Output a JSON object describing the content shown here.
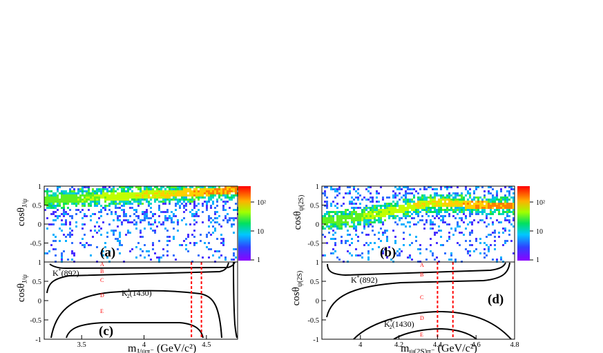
{
  "chart_data": [
    {
      "id": "a",
      "type": "heatmap",
      "label": "(a)",
      "ylabel": {
        "main": "cosθ",
        "sub": "J/ψ"
      },
      "xlim": [
        3.2,
        4.75
      ],
      "ylim": [
        -1,
        1
      ],
      "yticks": [
        "-0.5",
        "0",
        "0.5",
        "1"
      ],
      "colorbar": {
        "scale": "log",
        "ticks": [
          "1",
          "10",
          "10²"
        ]
      }
    },
    {
      "id": "b",
      "type": "heatmap",
      "label": "(b)",
      "ylabel": {
        "main": "cosθ",
        "sub": "ψ(2S)"
      },
      "xlim": [
        3.8,
        4.8
      ],
      "ylim": [
        -1,
        1
      ],
      "yticks": [
        "-0.5",
        "0",
        "0.5",
        "1"
      ],
      "colorbar": {
        "scale": "log",
        "ticks": [
          "1",
          "10",
          "10²"
        ]
      }
    },
    {
      "id": "c",
      "type": "line",
      "label": "(c)",
      "ylabel": {
        "main": "cosθ",
        "sub": "J/ψ"
      },
      "xlabel": {
        "main": "m",
        "sub": "J/ψπ⁻",
        "unit": "(GeV/c²)"
      },
      "xlim": [
        3.2,
        4.75
      ],
      "ylim": [
        -1,
        1
      ],
      "xticks": [
        "3.5",
        "4",
        "4.5"
      ],
      "yticks": [
        "-1",
        "-0.5",
        "0",
        "0.5",
        "1"
      ],
      "curves": [
        "K*(892)",
        "K*₂(1430)"
      ],
      "curve_labels": [
        {
          "main": "K",
          "sup": "*",
          "rest": "(892)"
        },
        {
          "main": "K",
          "sup": "*",
          "sub": "2",
          "rest": "(1430)"
        }
      ],
      "vlines_x": [
        4.38,
        4.46
      ],
      "regions": [
        "A",
        "B",
        "C",
        "D",
        "E"
      ]
    },
    {
      "id": "d",
      "type": "line",
      "label": "(d)",
      "ylabel": {
        "main": "cosθ",
        "sub": "ψ(2S)"
      },
      "xlabel": {
        "main": "m",
        "sub": "ψ(2S)π⁻",
        "unit": "(GeV/c²)"
      },
      "xlim": [
        3.8,
        4.8
      ],
      "ylim": [
        -1,
        1
      ],
      "xticks": [
        "4",
        "4.2",
        "4.4",
        "4.6",
        "4.8"
      ],
      "yticks": [
        "-1",
        "-0.5",
        "0",
        "0.5",
        "1"
      ],
      "curves": [
        "K*(892)",
        "K*₂(1430)"
      ],
      "curve_labels": [
        {
          "main": "K",
          "sup": "*",
          "rest": "(892)"
        },
        {
          "main": "K",
          "sup": "*",
          "sub": "2",
          "rest": "(1430)"
        }
      ],
      "vlines_x": [
        4.4,
        4.48
      ],
      "regions": [
        "A",
        "B",
        "C",
        "D",
        "E"
      ]
    }
  ]
}
